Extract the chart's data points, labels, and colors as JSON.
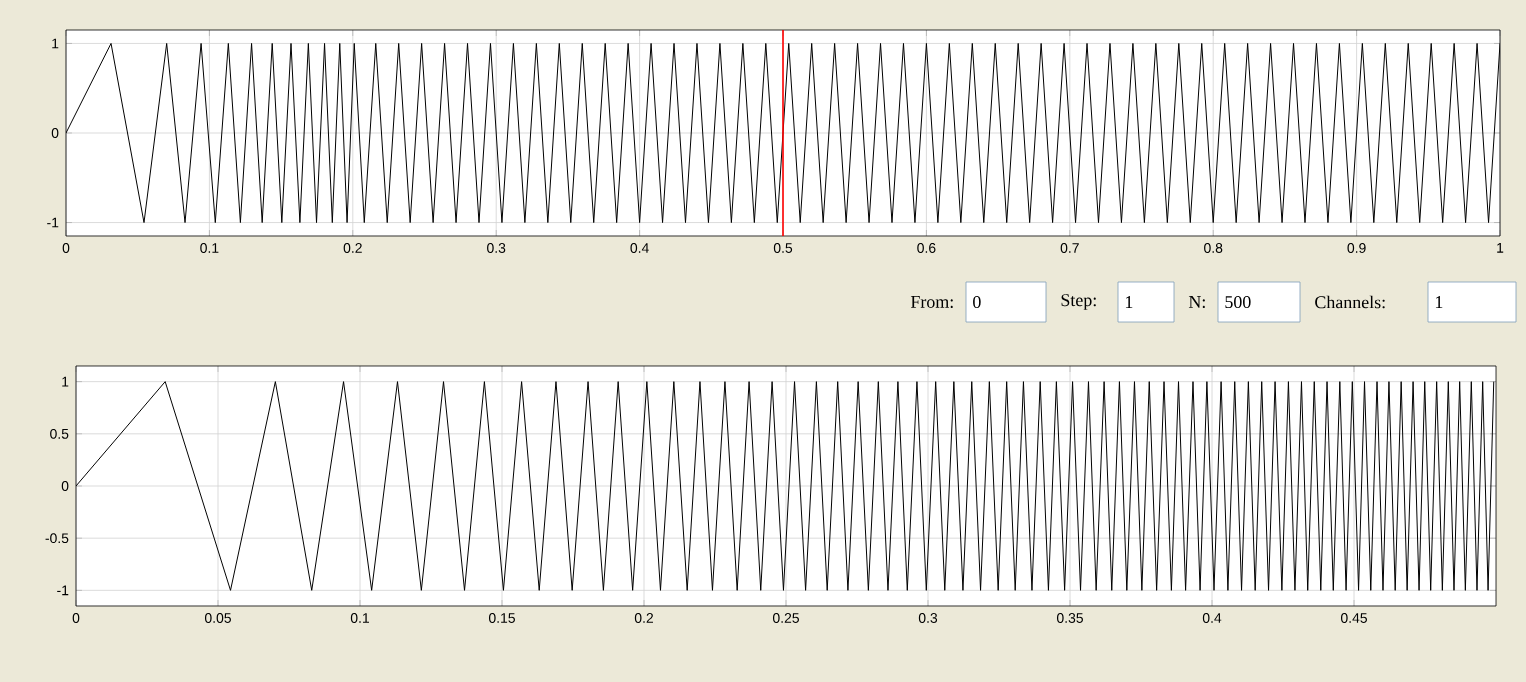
{
  "chart_data": [
    {
      "type": "line",
      "xlim": [
        0,
        1
      ],
      "ylim": [
        -1.15,
        1.15
      ],
      "xticks": [
        0,
        0.1,
        0.2,
        0.3,
        0.4,
        0.5,
        0.6,
        0.7,
        0.8,
        0.9,
        1
      ],
      "yticks": [
        -1,
        0,
        1
      ],
      "grid": true,
      "ref_lines": [
        {
          "axis": "x",
          "value": 0.5,
          "color": "#ff0000"
        }
      ],
      "series": [
        {
          "color": "#000000",
          "x": [
            0,
            0.0314,
            0.0544,
            0.0702,
            0.083,
            0.0942,
            0.1041,
            0.1132,
            0.1216,
            0.1294,
            0.1368,
            0.1438,
            0.1505,
            0.1569,
            0.1631,
            0.169,
            0.1747,
            0.1803,
            0.1857,
            0.1909,
            0.196,
            0.201,
            0.208,
            0.216,
            0.224,
            0.232,
            0.24,
            0.248,
            0.256,
            0.264,
            0.272,
            0.28,
            0.288,
            0.296,
            0.304,
            0.312,
            0.32,
            0.328,
            0.336,
            0.344,
            0.352,
            0.36,
            0.368,
            0.376,
            0.384,
            0.392,
            0.4,
            0.408,
            0.416,
            0.424,
            0.432,
            0.44,
            0.448,
            0.456,
            0.464,
            0.472,
            0.48,
            0.488,
            0.496,
            0.504,
            0.512,
            0.52,
            0.528,
            0.536,
            0.544,
            0.552,
            0.56,
            0.568,
            0.576,
            0.584,
            0.592,
            0.6,
            0.608,
            0.616,
            0.624,
            0.632,
            0.64,
            0.648,
            0.656,
            0.664,
            0.672,
            0.68,
            0.688,
            0.696,
            0.704,
            0.712,
            0.72,
            0.728,
            0.736,
            0.744,
            0.752,
            0.76,
            0.768,
            0.776,
            0.784,
            0.792,
            0.8,
            0.808,
            0.816,
            0.824,
            0.832,
            0.84,
            0.848,
            0.856,
            0.864,
            0.872,
            0.88,
            0.888,
            0.896,
            0.904,
            0.912,
            0.92,
            0.928,
            0.936,
            0.944,
            0.952,
            0.96,
            0.968,
            0.976,
            0.984,
            0.992,
            1.0
          ],
          "values": [
            0,
            1,
            -1,
            1,
            -1,
            1,
            -1,
            1,
            -1,
            1,
            -1,
            1,
            -1,
            1,
            -1,
            1,
            -1,
            1,
            -1,
            1,
            -1,
            1,
            -1,
            1,
            -1,
            1,
            -1,
            1,
            -1,
            1,
            -1,
            1,
            -1,
            1,
            -1,
            1,
            -1,
            1,
            -1,
            1,
            -1,
            1,
            -1,
            1,
            -1,
            1,
            -1,
            1,
            -1,
            1,
            -1,
            1,
            -1,
            1,
            -1,
            1,
            -1,
            1,
            -1,
            1,
            -1,
            1,
            -1,
            1,
            -1,
            1,
            -1,
            1,
            -1,
            1,
            -1,
            1,
            -1,
            1,
            -1,
            1,
            -1,
            1,
            -1,
            1,
            -1,
            1,
            -1,
            1,
            -1,
            1,
            -1,
            1,
            -1,
            1,
            -1,
            1,
            -1,
            1,
            -1,
            1,
            -1,
            1,
            -1,
            1,
            -1,
            1,
            -1,
            1,
            -1,
            1,
            -1,
            1,
            -1,
            1,
            -1,
            1,
            -1,
            1,
            -1,
            1,
            -1,
            1,
            -1,
            1,
            -1,
            1
          ]
        }
      ]
    },
    {
      "type": "line",
      "xlim": [
        0,
        0.5
      ],
      "ylim": [
        -1.15,
        1.15
      ],
      "xticks": [
        0,
        0.05,
        0.1,
        0.15,
        0.2,
        0.25,
        0.3,
        0.35,
        0.4,
        0.45
      ],
      "yticks": [
        -1,
        -0.5,
        0,
        0.5,
        1
      ],
      "grid": true,
      "series": [
        {
          "color": "#000000",
          "x": [
            0,
            0.0314,
            0.0544,
            0.0702,
            0.083,
            0.0942,
            0.1041,
            0.1132,
            0.1216,
            0.1294,
            0.1368,
            0.1438,
            0.1505,
            0.1569,
            0.1631,
            0.169,
            0.1747,
            0.1803,
            0.1857,
            0.1909,
            0.196,
            0.201,
            0.2058,
            0.2105,
            0.2152,
            0.2197,
            0.2241,
            0.2285,
            0.2328,
            0.237,
            0.2411,
            0.2451,
            0.2491,
            0.253,
            0.2569,
            0.2607,
            0.2645,
            0.2682,
            0.2718,
            0.2754,
            0.279,
            0.2825,
            0.2859,
            0.2894,
            0.2927,
            0.2961,
            0.2994,
            0.3027,
            0.3059,
            0.3091,
            0.3123,
            0.3154,
            0.3185,
            0.3216,
            0.3247,
            0.3277,
            0.3307,
            0.3336,
            0.3366,
            0.3395,
            0.3424,
            0.3452,
            0.3481,
            0.3509,
            0.3537,
            0.3565,
            0.3592,
            0.362,
            0.3647,
            0.3674,
            0.37,
            0.3727,
            0.3753,
            0.3779,
            0.3805,
            0.3831,
            0.3857,
            0.3882,
            0.3907,
            0.3933,
            0.3958,
            0.3982,
            0.4007,
            0.4032,
            0.4056,
            0.408,
            0.4104,
            0.4128,
            0.4152,
            0.4175,
            0.4199,
            0.4222,
            0.4246,
            0.4269,
            0.4292,
            0.4315,
            0.4337,
            0.436,
            0.4383,
            0.4405,
            0.4427,
            0.445,
            0.4472,
            0.4494,
            0.4516,
            0.4537,
            0.4559,
            0.4581,
            0.4602,
            0.4623,
            0.4645,
            0.4666,
            0.4687,
            0.4708,
            0.4729,
            0.4749,
            0.477,
            0.4791,
            0.4811,
            0.4832,
            0.4852,
            0.4872,
            0.4892,
            0.4913,
            0.4933,
            0.4953,
            0.4972,
            0.4992
          ],
          "values": [
            0,
            1,
            -1,
            1,
            -1,
            1,
            -1,
            1,
            -1,
            1,
            -1,
            1,
            -1,
            1,
            -1,
            1,
            -1,
            1,
            -1,
            1,
            -1,
            1,
            -1,
            1,
            -1,
            1,
            -1,
            1,
            -1,
            1,
            -1,
            1,
            -1,
            1,
            -1,
            1,
            -1,
            1,
            -1,
            1,
            -1,
            1,
            -1,
            1,
            -1,
            1,
            -1,
            1,
            -1,
            1,
            -1,
            1,
            -1,
            1,
            -1,
            1,
            -1,
            1,
            -1,
            1,
            -1,
            1,
            -1,
            1,
            -1,
            1,
            -1,
            1,
            -1,
            1,
            -1,
            1,
            -1,
            1,
            -1,
            1,
            -1,
            1,
            -1,
            1,
            -1,
            1,
            -1,
            1,
            -1,
            1,
            -1,
            1,
            -1,
            1,
            -1,
            1,
            -1,
            1,
            -1,
            1,
            -1,
            1,
            -1,
            1,
            -1,
            1,
            -1,
            1,
            -1,
            1,
            -1,
            1,
            -1,
            1,
            -1,
            1,
            -1,
            1,
            -1,
            1,
            -1,
            1,
            -1,
            1,
            -1,
            1,
            -1,
            1,
            -1,
            1,
            -1,
            1
          ]
        }
      ]
    },
    {
      "type": "other",
      "annotations": [
        "From:",
        "0",
        "Step:",
        "1",
        "N:",
        "500",
        "Channels:",
        "1"
      ]
    }
  ]
}
